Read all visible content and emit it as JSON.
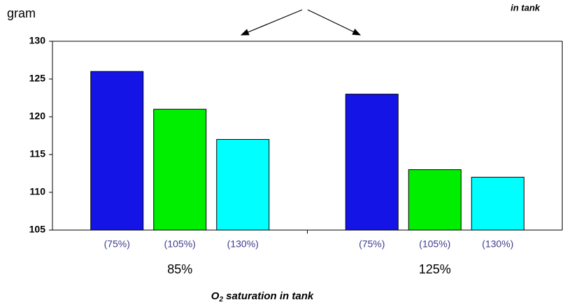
{
  "chart_data": {
    "type": "bar",
    "y_label": "gram",
    "annotation": "in tank",
    "x_label_parts": [
      "O",
      "2",
      " saturation in tank"
    ],
    "categories": [
      "85%",
      "125%"
    ],
    "series": [
      {
        "name": "(75%)",
        "color": "#1414e6",
        "values": [
          126,
          123
        ]
      },
      {
        "name": "(105%)",
        "color": "#00ee00",
        "values": [
          121,
          113
        ]
      },
      {
        "name": "(130%)",
        "color": "#00ffff",
        "values": [
          117,
          112
        ]
      }
    ],
    "ylim": [
      105,
      130
    ],
    "yticks": [
      105,
      110,
      115,
      120,
      125,
      130
    ],
    "grid": false
  }
}
